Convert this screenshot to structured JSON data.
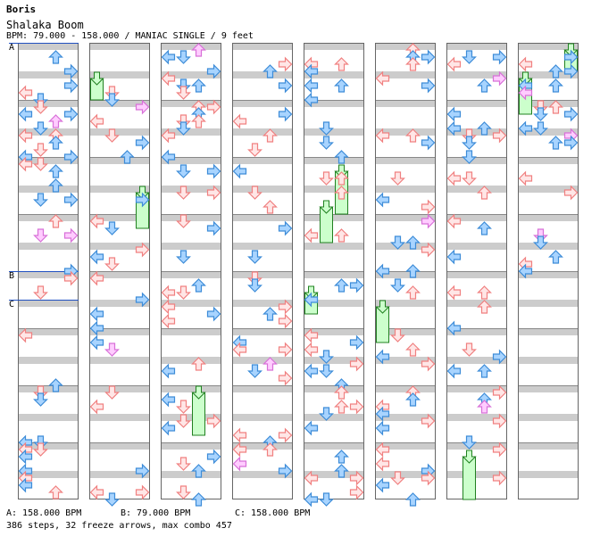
{
  "artist": "Boris",
  "title": "Shalaka Boom",
  "info": "BPM: 79.000 - 158.000 / MANIAC SINGLE / 9 feet",
  "bpm_markers": [
    {
      "letter": "A",
      "label": "A: 158.000 BPM",
      "column": 1,
      "beat": 0
    },
    {
      "letter": "B",
      "label": "B: 79.000 BPM",
      "column": 1,
      "beat": 32
    },
    {
      "letter": "C",
      "label": "C: 158.000 BPM",
      "column": 1,
      "beat": 36
    }
  ],
  "stats": "386 steps, 32 freeze arrows, max combo 457",
  "columns": 8,
  "measures_per_column": 8,
  "colors": {
    "red_arrow": "#f08080",
    "red_arrow_fill": "#ffe6e6",
    "blue_arrow": "#3d8cd8",
    "blue_arrow_fill": "#a8d4ff",
    "pink_arrow": "#d870d8",
    "pink_arrow_fill": "#ffccff",
    "freeze_fill": "#ccffcc",
    "freeze_border": "#208020",
    "gray_band": "#cccccc",
    "bpm_line": "#2050c0"
  },
  "arrow_icons": [
    "left-arrow-icon",
    "down-arrow-icon",
    "up-arrow-icon",
    "right-arrow-icon"
  ]
}
